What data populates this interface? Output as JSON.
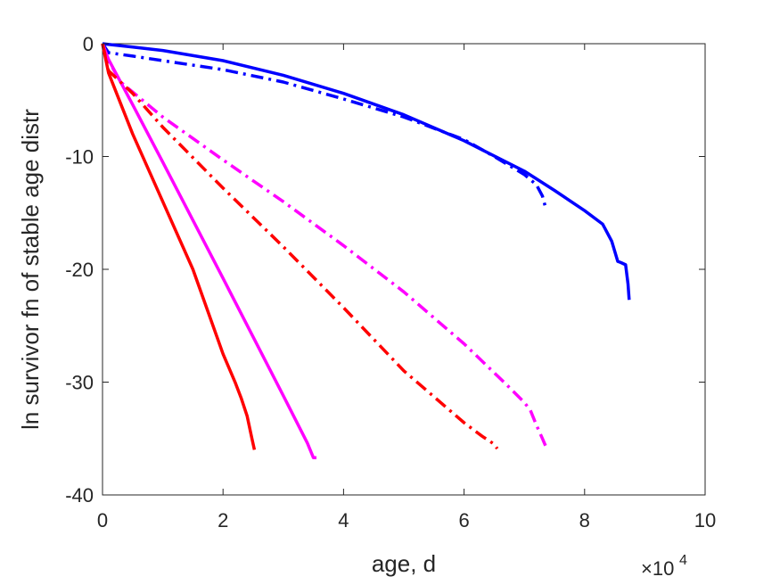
{
  "chart_data": {
    "type": "line",
    "title": "",
    "xlabel": "age, d",
    "ylabel": "ln survivor fn of stable age distr",
    "x_multiplier_label": "×10",
    "x_multiplier_exp": "4",
    "xlim": [
      0,
      100000
    ],
    "ylim": [
      -40,
      0
    ],
    "xticks": [
      0,
      20000,
      40000,
      60000,
      80000,
      100000
    ],
    "xtick_labels": [
      "0",
      "2",
      "4",
      "6",
      "8",
      "10"
    ],
    "yticks": [
      0,
      -10,
      -20,
      -30,
      -40
    ],
    "ytick_labels": [
      "0",
      "-10",
      "-20",
      "-30",
      "-40"
    ],
    "grid": false,
    "legend": "none",
    "series": [
      {
        "color": "#0000ff",
        "style": "solid",
        "x": [
          0,
          5000,
          10000,
          20000,
          30000,
          40000,
          50000,
          60000,
          70000,
          75000,
          80000,
          83000,
          84500,
          85500,
          86000,
          86800,
          87200,
          87400
        ],
        "y": [
          0,
          -0.3,
          -0.6,
          -1.5,
          -2.8,
          -4.4,
          -6.3,
          -8.6,
          -11.3,
          -13.0,
          -14.8,
          -16.0,
          -17.5,
          -19.3,
          -19.4,
          -19.6,
          -21.3,
          -22.7
        ]
      },
      {
        "color": "#0000ff",
        "style": "dashdot",
        "x": [
          0,
          1000,
          5000,
          10000,
          20000,
          30000,
          40000,
          50000,
          60000,
          65000,
          70000,
          72000,
          73000,
          73500
        ],
        "y": [
          0,
          -0.8,
          -1.1,
          -1.5,
          -2.3,
          -3.4,
          -4.9,
          -6.5,
          -8.5,
          -10.0,
          -11.6,
          -12.5,
          -13.5,
          -14.5
        ]
      },
      {
        "color": "#ff00ff",
        "style": "solid",
        "x": [
          0,
          1000,
          5000,
          10000,
          20000,
          30000,
          34000,
          35000,
          35500
        ],
        "y": [
          0,
          -1.4,
          -5.4,
          -10.5,
          -20.8,
          -31.2,
          -35.4,
          -36.7,
          -36.7
        ]
      },
      {
        "color": "#ff00ff",
        "style": "dashdot",
        "x": [
          0,
          1000,
          3000,
          10000,
          20000,
          30000,
          40000,
          50000,
          60000,
          67000,
          70000,
          71000,
          72000,
          73000,
          73800
        ],
        "y": [
          0,
          -1.5,
          -3.4,
          -6.5,
          -10.3,
          -14.0,
          -17.9,
          -22.0,
          -26.6,
          -30.2,
          -31.8,
          -32.5,
          -33.8,
          -35.0,
          -36.0
        ]
      },
      {
        "color": "#ff0000",
        "style": "solid",
        "x": [
          0,
          500,
          1000,
          5000,
          10000,
          15000,
          20000,
          22000,
          23000,
          24000,
          24800,
          25200
        ],
        "y": [
          0,
          -1.3,
          -2.6,
          -8.0,
          -14.0,
          -20.0,
          -27.5,
          -30.0,
          -31.4,
          -33.0,
          -35.0,
          -36.0
        ]
      },
      {
        "color": "#ff0000",
        "style": "dashdot",
        "x": [
          0,
          1000,
          5000,
          10000,
          20000,
          30000,
          40000,
          50000,
          60000,
          63000,
          65000,
          65500
        ],
        "y": [
          0,
          -2.4,
          -4.4,
          -7.4,
          -12.8,
          -18.0,
          -23.4,
          -29.0,
          -33.6,
          -34.8,
          -35.5,
          -35.9
        ]
      }
    ]
  }
}
